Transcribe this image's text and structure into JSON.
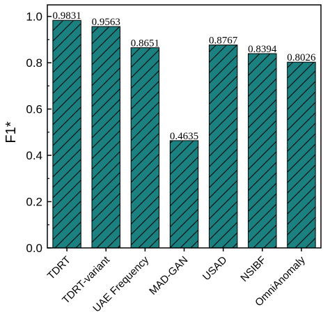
{
  "chart_data": {
    "type": "bar",
    "categories": [
      "TDRT",
      "TDRT-variant",
      "UAE Frequency",
      "MAD-GAN",
      "USAD",
      "NSIBF",
      "OmniAnomaly"
    ],
    "values": [
      0.9831,
      0.9563,
      0.8651,
      0.4635,
      0.8767,
      0.8394,
      0.8026
    ],
    "value_labels": [
      "0.9831",
      "0.9563",
      "0.8651",
      "0.4635",
      "0.8767",
      "0.8394",
      "0.8026"
    ],
    "ylabel": "F1*",
    "ylim": [
      0.0,
      1.05
    ],
    "yticks": [
      "0.0",
      "0.2",
      "0.4",
      "0.6",
      "0.8",
      "1.0"
    ],
    "bar_color": "#1a8080",
    "hatch": "diagonal",
    "grid": false,
    "legend": "none"
  }
}
